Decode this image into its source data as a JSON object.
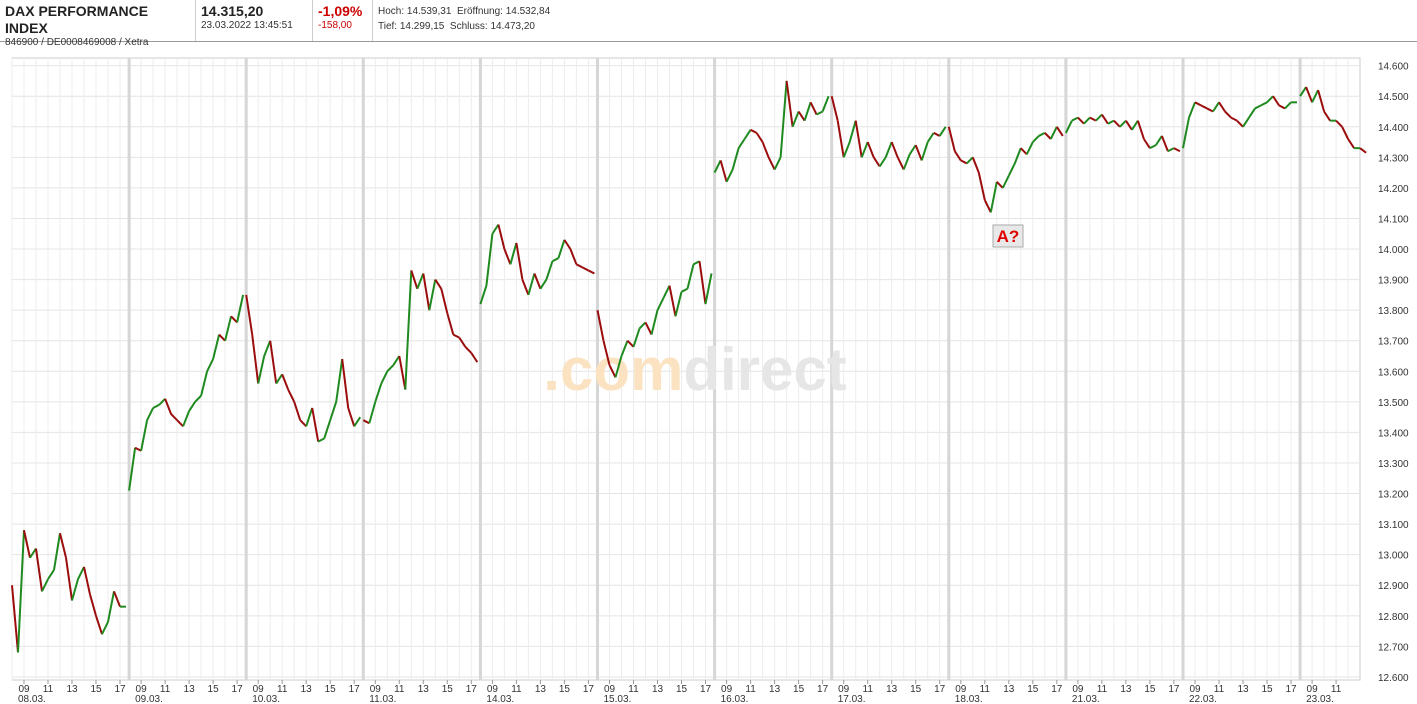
{
  "header": {
    "title": "DAX PERFORMANCE INDEX",
    "subtitle": "846900 / DE0008469008 / Xetra",
    "price": "14.315,20",
    "timestamp": "23.03.2022 13:45:51",
    "change_pct": "-1,09%",
    "change_abs": "-158,00",
    "high": "Hoch: 14.539,31",
    "open": "Eröffnung: 14.532,84",
    "low": "Tief: 14.299,15",
    "close": "Schluss: 14.473,20"
  },
  "chart_data": {
    "type": "line",
    "watermark": [
      ".com",
      "direct"
    ],
    "annotation": "A?",
    "up_color": "#1f8a1f",
    "down_color": "#9b0d0d",
    "grid": true,
    "ylim": [
      12590,
      14625
    ],
    "yticks": [
      {
        "value": 12600,
        "label": "12.600"
      },
      {
        "value": 12700,
        "label": "12.700"
      },
      {
        "value": 12800,
        "label": "12.800"
      },
      {
        "value": 12900,
        "label": "12.900"
      },
      {
        "value": 13000,
        "label": "13.000"
      },
      {
        "value": 13100,
        "label": "13.100"
      },
      {
        "value": 13200,
        "label": "13.200"
      },
      {
        "value": 13300,
        "label": "13.300"
      },
      {
        "value": 13400,
        "label": "13.400"
      },
      {
        "value": 13500,
        "label": "13.500"
      },
      {
        "value": 13600,
        "label": "13.600"
      },
      {
        "value": 13700,
        "label": "13.700"
      },
      {
        "value": 13800,
        "label": "13.800"
      },
      {
        "value": 13900,
        "label": "13.900"
      },
      {
        "value": 14000,
        "label": "14.000"
      },
      {
        "value": 14100,
        "label": "14.100"
      },
      {
        "value": 14200,
        "label": "14.200"
      },
      {
        "value": 14300,
        "label": "14.300"
      },
      {
        "value": 14400,
        "label": "14.400"
      },
      {
        "value": 14500,
        "label": "14.500"
      },
      {
        "value": 14600,
        "label": "14.600"
      }
    ],
    "xticks": [
      {
        "value": 9,
        "label": "09"
      },
      {
        "value": 11,
        "label": "11"
      },
      {
        "value": 13,
        "label": "13"
      },
      {
        "value": 15,
        "label": "15"
      },
      {
        "value": 17,
        "label": "17"
      }
    ],
    "x": [
      8,
      8.5,
      9,
      9.5,
      10,
      10.5,
      11,
      11.5,
      12,
      12.5,
      13,
      13.5,
      14,
      14.5,
      15,
      15.5,
      16,
      16.5,
      17,
      17.5
    ],
    "days": [
      {
        "date": "08.03.",
        "values": [
          12900,
          12680,
          13080,
          12990,
          13020,
          12880,
          12920,
          12950,
          13070,
          12990,
          12850,
          12920,
          12960,
          12870,
          12800,
          12740,
          12780,
          12880,
          12830,
          12830
        ]
      },
      {
        "date": "09.03.",
        "values": [
          13210,
          13350,
          13340,
          13440,
          13480,
          13490,
          13510,
          13460,
          13440,
          13420,
          13470,
          13500,
          13520,
          13600,
          13640,
          13720,
          13700,
          13780,
          13760,
          13850
        ]
      },
      {
        "date": "10.03.",
        "values": [
          13850,
          13720,
          13560,
          13650,
          13700,
          13560,
          13590,
          13540,
          13500,
          13440,
          13420,
          13480,
          13370,
          13380,
          13440,
          13500,
          13640,
          13480,
          13420,
          13450
        ]
      },
      {
        "date": "11.03.",
        "values": [
          13440,
          13430,
          13500,
          13560,
          13600,
          13620,
          13650,
          13540,
          13930,
          13870,
          13920,
          13800,
          13900,
          13870,
          13790,
          13720,
          13710,
          13680,
          13660,
          13630
        ]
      },
      {
        "date": "14.03.",
        "values": [
          13820,
          13880,
          14050,
          14080,
          14000,
          13950,
          14020,
          13900,
          13850,
          13920,
          13870,
          13900,
          13960,
          13970,
          14030,
          14000,
          13950,
          13940,
          13930,
          13920
        ]
      },
      {
        "date": "15.03.",
        "values": [
          13800,
          13700,
          13620,
          13580,
          13650,
          13700,
          13680,
          13740,
          13760,
          13720,
          13800,
          13840,
          13880,
          13780,
          13860,
          13870,
          13950,
          13960,
          13820,
          13920
        ]
      },
      {
        "date": "16.03.",
        "values": [
          14250,
          14290,
          14220,
          14260,
          14330,
          14360,
          14390,
          14380,
          14350,
          14300,
          14260,
          14300,
          14550,
          14400,
          14450,
          14420,
          14480,
          14440,
          14450,
          14500
        ]
      },
      {
        "date": "17.03.",
        "values": [
          14500,
          14420,
          14300,
          14350,
          14420,
          14300,
          14350,
          14300,
          14270,
          14300,
          14350,
          14300,
          14260,
          14310,
          14340,
          14290,
          14350,
          14380,
          14370,
          14400
        ]
      },
      {
        "date": "18.03.",
        "values": [
          14400,
          14320,
          14290,
          14280,
          14300,
          14250,
          14160,
          14120,
          14220,
          14200,
          14240,
          14280,
          14330,
          14310,
          14350,
          14370,
          14380,
          14360,
          14400,
          14370
        ]
      },
      {
        "date": "21.03.",
        "values": [
          14380,
          14420,
          14430,
          14410,
          14430,
          14420,
          14440,
          14410,
          14420,
          14400,
          14420,
          14390,
          14420,
          14360,
          14330,
          14340,
          14370,
          14320,
          14330,
          14320
        ]
      },
      {
        "date": "22.03.",
        "values": [
          14330,
          14430,
          14480,
          14470,
          14460,
          14450,
          14480,
          14450,
          14430,
          14420,
          14400,
          14430,
          14460,
          14470,
          14480,
          14500,
          14470,
          14460,
          14480,
          14480
        ]
      },
      {
        "date": "23.03.",
        "values": [
          14500,
          14530,
          14480,
          14520,
          14450,
          14420,
          14420,
          14400,
          14360,
          14330,
          14330,
          14315,
          null,
          null,
          null,
          null,
          null,
          null,
          null,
          null
        ]
      }
    ]
  }
}
